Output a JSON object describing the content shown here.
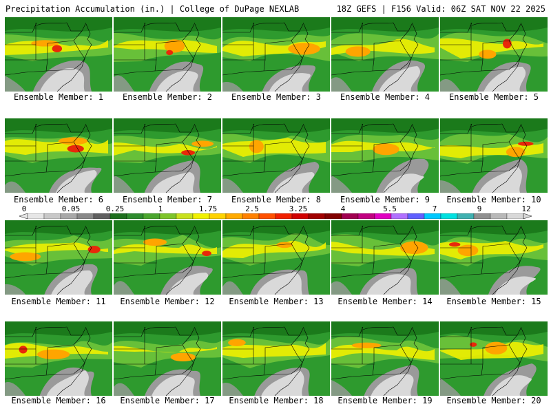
{
  "header": {
    "title": "Precipitation Accumulation (in.) | College of DuPage NEXLAB",
    "run_info": "18Z GEFS | F156 Valid: 06Z SAT NOV 22 2025"
  },
  "colorbar": {
    "tick_labels": [
      "0",
      "0.05",
      "0.25",
      "1",
      "1.75",
      "2.5",
      "3.25",
      "4",
      "5.5",
      "7",
      "9",
      "12"
    ],
    "colors": [
      "#e6e6e6",
      "#c8c8c8",
      "#a8a8a8",
      "#888888",
      "#606060",
      "#1e6f1e",
      "#2e8b2e",
      "#4aa52e",
      "#7ec42a",
      "#c8e01e",
      "#f0f000",
      "#ffd200",
      "#ffaa00",
      "#ff8000",
      "#ff5000",
      "#f02000",
      "#d00000",
      "#a00000",
      "#800000",
      "#a00050",
      "#c00080",
      "#e000c0",
      "#b070ff",
      "#6060ff",
      "#00c8ff",
      "#00e0e0",
      "#40b0b0",
      "#909090",
      "#b8b8b8",
      "#d8d8d8"
    ]
  },
  "palette": {
    "green_dark": "#1b7a1b",
    "green": "#2e9a2e",
    "green_light": "#6cc23a",
    "yellow": "#f0f000",
    "orange": "#ffa500",
    "red": "#e8280a",
    "gray_light": "#d9d9d9",
    "gray_dark": "#9a9a9a",
    "state_lines": "#000000"
  },
  "panels": [
    {
      "caption": "Ensemble Member: 1"
    },
    {
      "caption": "Ensemble Member: 2"
    },
    {
      "caption": "Ensemble Member: 3"
    },
    {
      "caption": "Ensemble Member: 4"
    },
    {
      "caption": "Ensemble Member: 5"
    },
    {
      "caption": "Ensemble Member: 6"
    },
    {
      "caption": "Ensemble Member: 7"
    },
    {
      "caption": "Ensemble Member: 8"
    },
    {
      "caption": "Ensemble Member: 9"
    },
    {
      "caption": "Ensemble Member: 10"
    },
    {
      "caption": "Ensemble Member: 11"
    },
    {
      "caption": "Ensemble Member: 12"
    },
    {
      "caption": "Ensemble Member: 13"
    },
    {
      "caption": "Ensemble Member: 14"
    },
    {
      "caption": "Ensemble Member: 15"
    },
    {
      "caption": "Ensemble Member: 16"
    },
    {
      "caption": "Ensemble Member: 17"
    },
    {
      "caption": "Ensemble Member: 18"
    },
    {
      "caption": "Ensemble Member: 19"
    },
    {
      "caption": "Ensemble Member: 20"
    }
  ]
}
